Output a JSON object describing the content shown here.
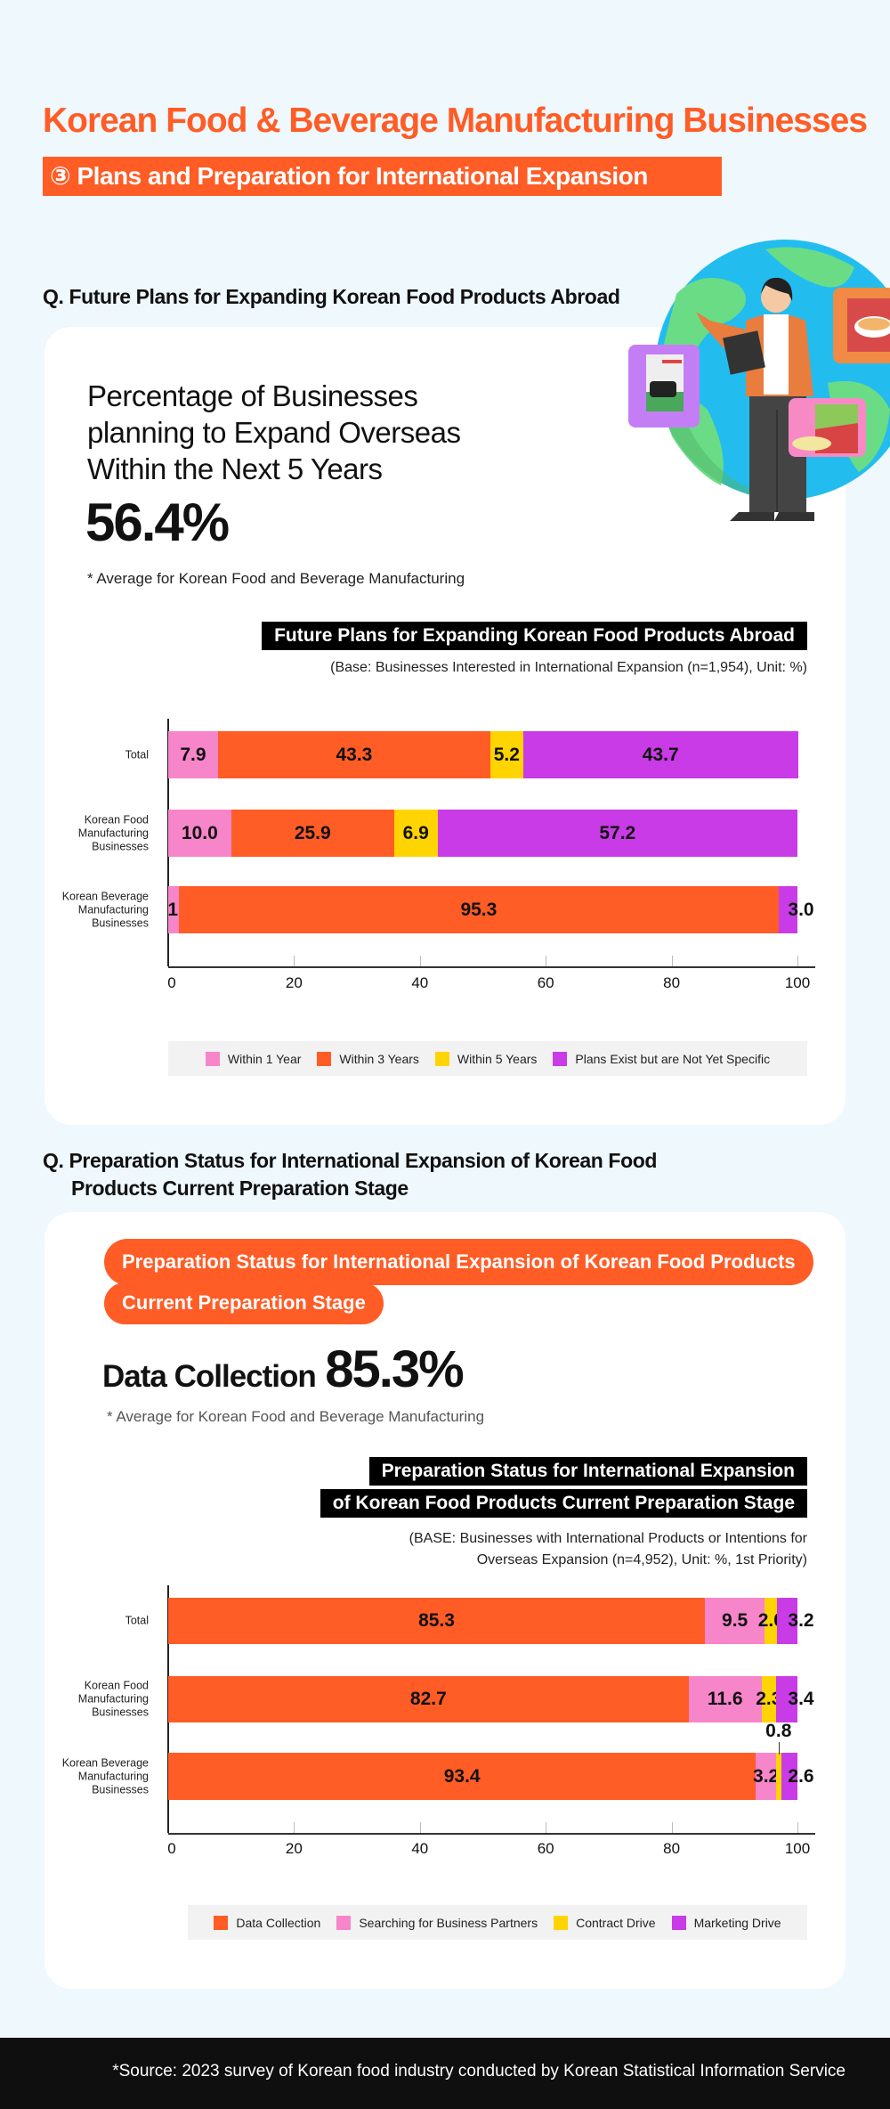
{
  "header": {
    "title": "Korean Food & Beverage Manufacturing Businesses",
    "subtitle": "③ Plans and Preparation for International Expansion"
  },
  "section1": {
    "question": "Q. Future Plans for Expanding Korean Food Products Abroad",
    "stat_label_lines": [
      "Percentage of Businesses",
      "planning to Expand Overseas",
      "Within the Next 5 Years"
    ],
    "stat_value": "56.4%",
    "footnote": "* Average for Korean Food and Beverage Manufacturing",
    "chart_title": "Future Plans for Expanding Korean Food Products Abroad",
    "base_note": "(Base: Businesses Interested in International Expansion (n=1,954), Unit: %)"
  },
  "section2": {
    "question_lines": [
      "Q. Preparation Status for International Expansion of Korean Food",
      "Products Current Preparation Stage"
    ],
    "pill_lines": [
      "Preparation Status for International Expansion of Korean Food Products",
      "Current Preparation Stage"
    ],
    "stat_label": "Data Collection",
    "stat_value": "85.3%",
    "footnote": "* Average for Korean Food and Beverage Manufacturing",
    "chart_title_lines": [
      "Preparation Status for International Expansion",
      "of Korean Food Products Current Preparation Stage"
    ],
    "base_note_lines": [
      "(BASE: Businesses with International Products or Intentions for",
      "Overseas Expansion (n=4,952), Unit: %, 1st Priority)"
    ]
  },
  "footer": {
    "source": "*Source: 2023 survey of Korean food industry conducted by Korean Statistical Information Service"
  },
  "colors": {
    "accent": "#ff5c26",
    "pink": "#f785c9",
    "yellow": "#ffd400",
    "purple": "#c93be6",
    "background": "#eef8fd"
  },
  "illustration": {
    "icons": [
      "globe-icon",
      "person-with-tablet-icon",
      "seaweed-snack-icon",
      "ramen-icon",
      "chips-icon"
    ]
  },
  "chart_data": [
    {
      "type": "bar",
      "orientation": "horizontal",
      "stacked": true,
      "categories": [
        "Total",
        "Korean Food Manufacturing Businesses",
        "Korean Beverage Manufacturing Businesses"
      ],
      "series": [
        {
          "name": "Within 1 Year",
          "color": "#f785c9",
          "values": [
            7.9,
            10.0,
            1.7
          ]
        },
        {
          "name": "Within 3 Years",
          "color": "#ff5c26",
          "values": [
            43.3,
            25.9,
            95.3
          ]
        },
        {
          "name": "Within 5 Years",
          "color": "#ffd400",
          "values": [
            5.2,
            6.9,
            0
          ]
        },
        {
          "name": "Plans Exist but are Not Yet Specific",
          "color": "#c93be6",
          "values": [
            43.7,
            57.2,
            3.0
          ]
        }
      ],
      "xlim": [
        0,
        100
      ],
      "xticks": [
        "0",
        "20",
        "40",
        "60",
        "80",
        "100"
      ],
      "grid": false,
      "legend": "bottom"
    },
    {
      "type": "bar",
      "orientation": "horizontal",
      "stacked": true,
      "categories": [
        "Total",
        "Korean Food Manufacturing Businesses",
        "Korean Beverage Manufacturing Businesses"
      ],
      "series": [
        {
          "name": "Data Collection",
          "color": "#ff5c26",
          "values": [
            85.3,
            82.7,
            93.4
          ]
        },
        {
          "name": "Searching for Business Partners",
          "color": "#f785c9",
          "values": [
            9.5,
            11.6,
            3.2
          ]
        },
        {
          "name": "Contract Drive",
          "color": "#ffd400",
          "values": [
            2.0,
            2.3,
            0.8
          ]
        },
        {
          "name": "Marketing Drive",
          "color": "#c93be6",
          "values": [
            3.2,
            3.4,
            2.6
          ]
        }
      ],
      "xlim": [
        0,
        100
      ],
      "xticks": [
        "0",
        "20",
        "40",
        "60",
        "80",
        "100"
      ],
      "grid": false,
      "legend": "bottom"
    }
  ]
}
